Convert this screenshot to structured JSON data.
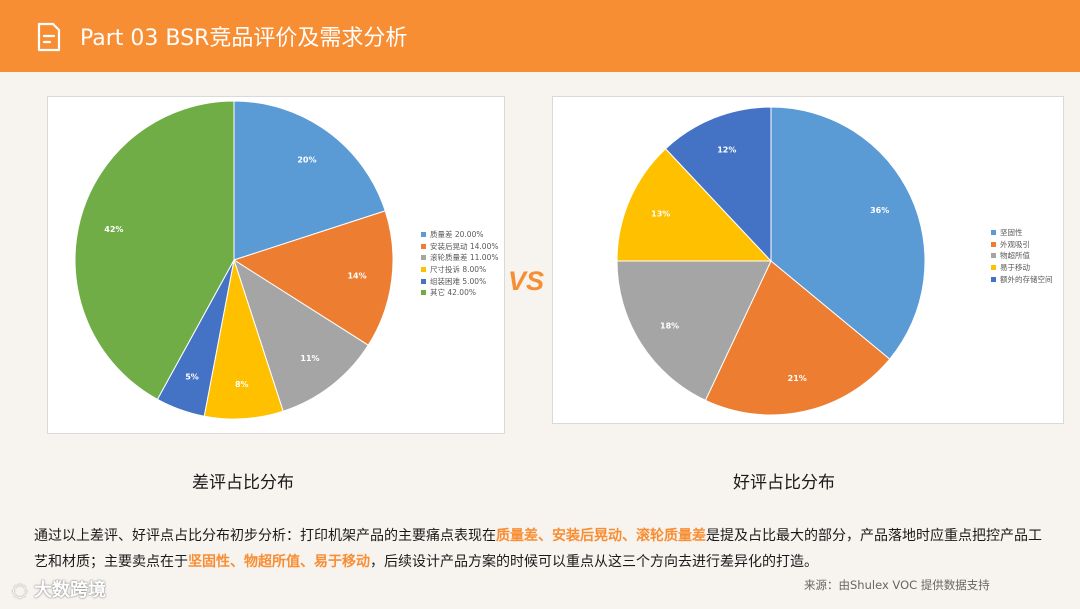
{
  "header": {
    "title": "Part 03  BSR竞品评价及需求分析"
  },
  "vs_label": "VS",
  "chart_data": [
    {
      "type": "pie",
      "name": "差评占比分布",
      "categories": [
        "质量差",
        "安装后晃动",
        "滚轮质量差",
        "尺寸投诉",
        "组装困难",
        "其它"
      ],
      "values": [
        20,
        14,
        11,
        8,
        5,
        42
      ],
      "data_labels": [
        "20%",
        "14%",
        "11%",
        "8%",
        "5%",
        "42%"
      ],
      "legend": [
        "质量差 20.00%",
        "安装后晃动 14.00%",
        "滚轮质量差 11.00%",
        "尺寸投诉 8.00%",
        "组装困难 5.00%",
        "其它 42.00%"
      ],
      "colors": [
        "#5b9bd5",
        "#ed7d31",
        "#a5a5a5",
        "#ffc000",
        "#4472c4",
        "#70ad47"
      ],
      "legend_position": "right"
    },
    {
      "type": "pie",
      "name": "好评占比分布",
      "categories": [
        "坚固性",
        "外观吸引",
        "物超所值",
        "易于移动",
        "额外的存储空间"
      ],
      "values": [
        36,
        21,
        18,
        13,
        12
      ],
      "data_labels": [
        "36%",
        "21%",
        "18%",
        "13%",
        "12%"
      ],
      "legend": [
        "坚固性",
        "外观吸引",
        "物超所值",
        "易于移动",
        "额外的存储空间"
      ],
      "colors": [
        "#5b9bd5",
        "#ed7d31",
        "#a5a5a5",
        "#ffc000",
        "#4472c4"
      ],
      "legend_position": "right"
    }
  ],
  "captions": {
    "left": "差评占比分布",
    "right": "好评占比分布"
  },
  "summary": {
    "p1": "通过以上差评、好评点占比分布初步分析：打印机架产品的主要痛点表现在",
    "hl1": "质量差、安装后晃动、滚轮质量差",
    "p2": "是提及占比最大的部分，产品落地时应重点把控产品工艺和材质；主要卖点在于",
    "hl2": "坚固性、物超所值、易于移动",
    "p3": "，后续设计产品方案的时候可以重点从这三个方向去进行差异化的打造。"
  },
  "source": "来源：由Shulex VOC 提供数据支持",
  "watermark": "大数跨境"
}
